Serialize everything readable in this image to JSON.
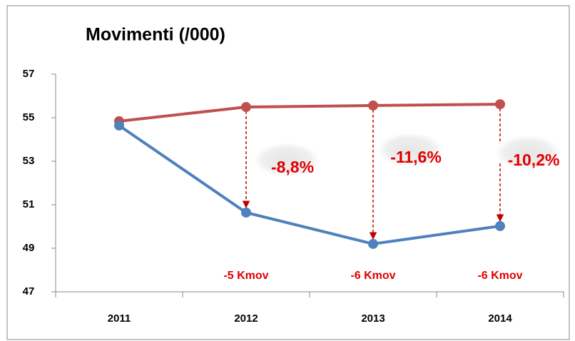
{
  "chart_data": {
    "type": "line",
    "title": "Movimenti (/000)",
    "categories": [
      "2011",
      "2012",
      "2013",
      "2014"
    ],
    "series": [
      {
        "color": "#c0504d",
        "values": [
          54.84,
          55.49,
          55.56,
          55.62
        ]
      },
      {
        "color": "#4f81bd",
        "values": [
          54.64,
          50.64,
          49.2,
          50.02
        ]
      }
    ],
    "ylim": [
      47,
      57
    ],
    "yticks": [
      47,
      49,
      51,
      53,
      55,
      57
    ],
    "grid": false,
    "annotations": [
      "-8,8%",
      "-11,6%",
      "-10,2%"
    ],
    "notes": [
      "-5 Kmov",
      "-6 Kmov",
      "-6 Kmov"
    ]
  }
}
